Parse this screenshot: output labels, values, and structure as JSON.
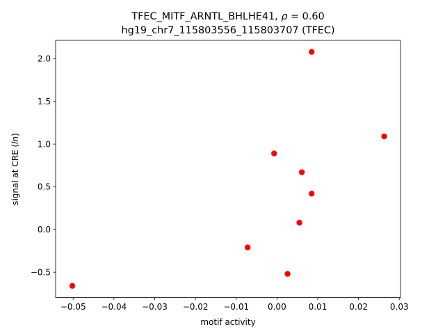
{
  "chart_data": {
    "type": "scatter",
    "title_parts": [
      "TFEC_MITF_ARNTL_BHLHE41, ",
      "ρ",
      " = 0.60"
    ],
    "subtitle": "hg19_chr7_115803556_115803707 (TFEC)",
    "xlabel": "motif activity",
    "ylabel_parts": [
      "signal at CRE (",
      "ln",
      ")"
    ],
    "xlim": [
      -0.0543,
      0.0303
    ],
    "ylim": [
      -0.797,
      2.215
    ],
    "x_ticks": [
      -0.05,
      -0.04,
      -0.03,
      -0.02,
      -0.01,
      0.0,
      0.01,
      0.02,
      0.03
    ],
    "x_tick_labels": [
      "−0.05",
      "−0.04",
      "−0.03",
      "−0.02",
      "−0.01",
      "0.00",
      "0.01",
      "0.02",
      "0.03"
    ],
    "y_ticks": [
      -0.5,
      0.0,
      0.5,
      1.0,
      1.5,
      2.0
    ],
    "y_tick_labels": [
      "−0.5",
      "0.0",
      "0.5",
      "1.0",
      "1.5",
      "2.0"
    ],
    "grid": false,
    "point_color": "#ff0000",
    "points": [
      {
        "x": 0.0085,
        "y": 2.08
      },
      {
        "x": 0.0263,
        "y": 1.09
      },
      {
        "x": -0.0007,
        "y": 0.89
      },
      {
        "x": 0.0061,
        "y": 0.67
      },
      {
        "x": 0.0085,
        "y": 0.42
      },
      {
        "x": 0.0055,
        "y": 0.08
      },
      {
        "x": -0.0072,
        "y": -0.21
      },
      {
        "x": 0.0026,
        "y": -0.52
      },
      {
        "x": -0.0502,
        "y": -0.66
      }
    ]
  }
}
